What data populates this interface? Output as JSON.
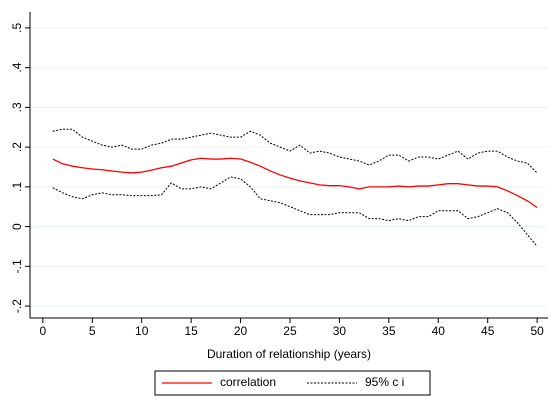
{
  "chart_data": {
    "type": "line",
    "x_label": "Duration of relationship (years)",
    "x": [
      1,
      2,
      3,
      4,
      5,
      6,
      7,
      8,
      9,
      10,
      11,
      12,
      13,
      14,
      15,
      16,
      17,
      18,
      19,
      20,
      21,
      22,
      23,
      24,
      25,
      26,
      27,
      28,
      29,
      30,
      31,
      32,
      33,
      34,
      35,
      36,
      37,
      38,
      39,
      40,
      41,
      42,
      43,
      44,
      45,
      46,
      47,
      48,
      49,
      50
    ],
    "series": [
      {
        "name": "correlation",
        "color": "#ff0000",
        "dash": false,
        "values": [
          0.17,
          0.158,
          0.152,
          0.148,
          0.145,
          0.143,
          0.14,
          0.137,
          0.135,
          0.137,
          0.142,
          0.148,
          0.152,
          0.16,
          0.168,
          0.172,
          0.17,
          0.17,
          0.172,
          0.17,
          0.162,
          0.152,
          0.14,
          0.13,
          0.122,
          0.115,
          0.11,
          0.105,
          0.103,
          0.103,
          0.1,
          0.095,
          0.1,
          0.1,
          0.1,
          0.102,
          0.1,
          0.102,
          0.102,
          0.105,
          0.108,
          0.108,
          0.105,
          0.102,
          0.102,
          0.1,
          0.09,
          0.078,
          0.065,
          0.048
        ]
      },
      {
        "name": "95% c i",
        "color": "#000000",
        "dash": true,
        "values": [
          0.24,
          0.245,
          0.245,
          0.225,
          0.215,
          0.205,
          0.2,
          0.205,
          0.195,
          0.195,
          0.205,
          0.21,
          0.22,
          0.22,
          0.225,
          0.23,
          0.235,
          0.23,
          0.225,
          0.225,
          0.24,
          0.23,
          0.21,
          0.2,
          0.19,
          0.205,
          0.185,
          0.19,
          0.185,
          0.175,
          0.17,
          0.165,
          0.155,
          0.165,
          0.18,
          0.18,
          0.165,
          0.175,
          0.175,
          0.17,
          0.18,
          0.19,
          0.17,
          0.185,
          0.19,
          0.19,
          0.175,
          0.165,
          0.16,
          0.135
        ]
      },
      {
        "color": "#000000",
        "dash": true,
        "values": [
          0.098,
          0.085,
          0.075,
          0.07,
          0.08,
          0.085,
          0.08,
          0.08,
          0.078,
          0.078,
          0.078,
          0.08,
          0.11,
          0.095,
          0.095,
          0.1,
          0.095,
          0.11,
          0.125,
          0.12,
          0.1,
          0.07,
          0.065,
          0.06,
          0.05,
          0.04,
          0.03,
          0.03,
          0.03,
          0.035,
          0.035,
          0.035,
          0.02,
          0.02,
          0.015,
          0.02,
          0.015,
          0.025,
          0.025,
          0.04,
          0.04,
          0.04,
          0.02,
          0.025,
          0.035,
          0.045,
          0.035,
          0.01,
          -0.02,
          -0.05
        ]
      }
    ],
    "xlim": [
      -1.3,
      51.1
    ],
    "ylim": [
      -0.23,
      0.54
    ],
    "xticks": [
      0,
      5,
      10,
      15,
      20,
      25,
      30,
      35,
      40,
      45,
      50
    ],
    "yticks": [
      {
        "value": -0.2,
        "label": "-.2"
      },
      {
        "value": -0.1,
        "label": "-.1"
      },
      0,
      {
        "value": 0.1,
        "label": ".1"
      },
      {
        "value": 0.2,
        "label": ".2"
      },
      {
        "value": 0.3,
        "label": ".3"
      },
      {
        "value": 0.4,
        "label": ".4"
      },
      {
        "value": 0.5,
        "label": ".5"
      }
    ],
    "grid": true
  }
}
